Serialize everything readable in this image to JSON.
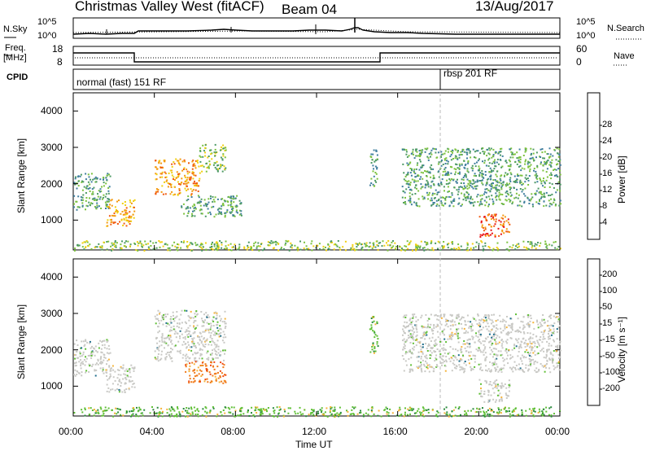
{
  "header": {
    "title": "Christmas Valley West (fitACF)",
    "beam": "Beam 04",
    "date": "13/Aug/2017"
  },
  "noise_panel": {
    "left_label": "N.Sky",
    "right_label": "N.Search",
    "left_ticks": [
      "10^5",
      "10^0"
    ],
    "right_ticks": [
      "10^5",
      "10^0"
    ]
  },
  "freq_panel": {
    "left_label_line1": "Freq.",
    "left_label_line2": "[MHz]",
    "left_ticks": [
      "18",
      "8"
    ],
    "right_label": "Nave",
    "right_ticks": [
      "60",
      "0"
    ]
  },
  "cpid_panel": {
    "label": "CPID",
    "modes": [
      "normal (fast) 151 RF",
      "rbsp 201 RF"
    ]
  },
  "time_axis": {
    "label": "Time UT",
    "ticks": [
      "00:00",
      "04:00",
      "08:00",
      "12:00",
      "16:00",
      "20:00",
      "00:00"
    ]
  },
  "chart_data": [
    {
      "type": "heatmap",
      "name": "Power",
      "ylabel": "Slant Range [km]",
      "yticks": [
        "1000",
        "2000",
        "3000",
        "4000"
      ],
      "ylim": [
        180,
        4500
      ],
      "xlim_hours": [
        0,
        24
      ],
      "colorbar_label": "Power [dB]",
      "colorbar_ticks": [
        "4",
        "8",
        "12",
        "16",
        "20",
        "24",
        "28"
      ],
      "colorbar_colors": [
        "#1515e6",
        "#2858c4",
        "#3f7e9e",
        "#4c9a64",
        "#7cc23e",
        "#f0d010",
        "#f49a10",
        "#f15a10",
        "#ea1414"
      ],
      "echo_regions": [
        {
          "t": [
            0.0,
            1.8
          ],
          "range": [
            1300,
            2300
          ],
          "level": 10
        },
        {
          "t": [
            1.6,
            3.0
          ],
          "range": [
            850,
            1600
          ],
          "level": 22
        },
        {
          "t": [
            4.0,
            6.2
          ],
          "range": [
            1700,
            2700
          ],
          "level": 24
        },
        {
          "t": [
            6.2,
            7.5
          ],
          "range": [
            2300,
            3100
          ],
          "level": 14
        },
        {
          "t": [
            5.3,
            8.3
          ],
          "range": [
            1100,
            1700
          ],
          "level": 12
        },
        {
          "t": [
            14.6,
            15.0
          ],
          "range": [
            1900,
            3000
          ],
          "level": 10
        },
        {
          "t": [
            16.2,
            24.0
          ],
          "range": [
            1400,
            3000
          ],
          "level": 12
        },
        {
          "t": [
            20.0,
            21.5
          ],
          "range": [
            550,
            1200
          ],
          "level": 26
        },
        {
          "t": [
            0.0,
            24.0
          ],
          "range": [
            180,
            450
          ],
          "level": 16
        }
      ]
    },
    {
      "type": "heatmap",
      "name": "Velocity",
      "ylabel": "Slant Range [km]",
      "yticks": [
        "1000",
        "2000",
        "3000",
        "4000"
      ],
      "ylim": [
        180,
        4500
      ],
      "xlim_hours": [
        0,
        24
      ],
      "colorbar_label": "Velocity [m s⁻¹]",
      "colorbar_ticks": [
        "200",
        "100",
        "50",
        "15",
        "-15",
        "-50",
        "-100",
        "-200"
      ],
      "colorbar_colors": [
        "#1f2fbf",
        "#1e6e8c",
        "#2a8a3c",
        "#5fbf35",
        "#c9c9c5",
        "#f5b43a",
        "#f07a1a",
        "#ee4a14",
        "#e61717"
      ],
      "echo_regions": [
        {
          "t": [
            0.0,
            1.8
          ],
          "range": [
            1300,
            2300
          ],
          "velocity": 0
        },
        {
          "t": [
            1.6,
            3.0
          ],
          "range": [
            850,
            1600
          ],
          "velocity": 0
        },
        {
          "t": [
            4.0,
            7.5
          ],
          "range": [
            1700,
            3100
          ],
          "velocity": 0
        },
        {
          "t": [
            5.5,
            7.5
          ],
          "range": [
            1100,
            1700
          ],
          "velocity": -40
        },
        {
          "t": [
            14.6,
            15.0
          ],
          "range": [
            1900,
            3000
          ],
          "velocity": 20
        },
        {
          "t": [
            16.2,
            24.0
          ],
          "range": [
            1400,
            3000
          ],
          "velocity": 0
        },
        {
          "t": [
            20.0,
            21.5
          ],
          "range": [
            550,
            1200
          ],
          "velocity": 0
        },
        {
          "t": [
            0.0,
            24.0
          ],
          "range": [
            180,
            450
          ],
          "velocity": 15
        }
      ]
    }
  ]
}
